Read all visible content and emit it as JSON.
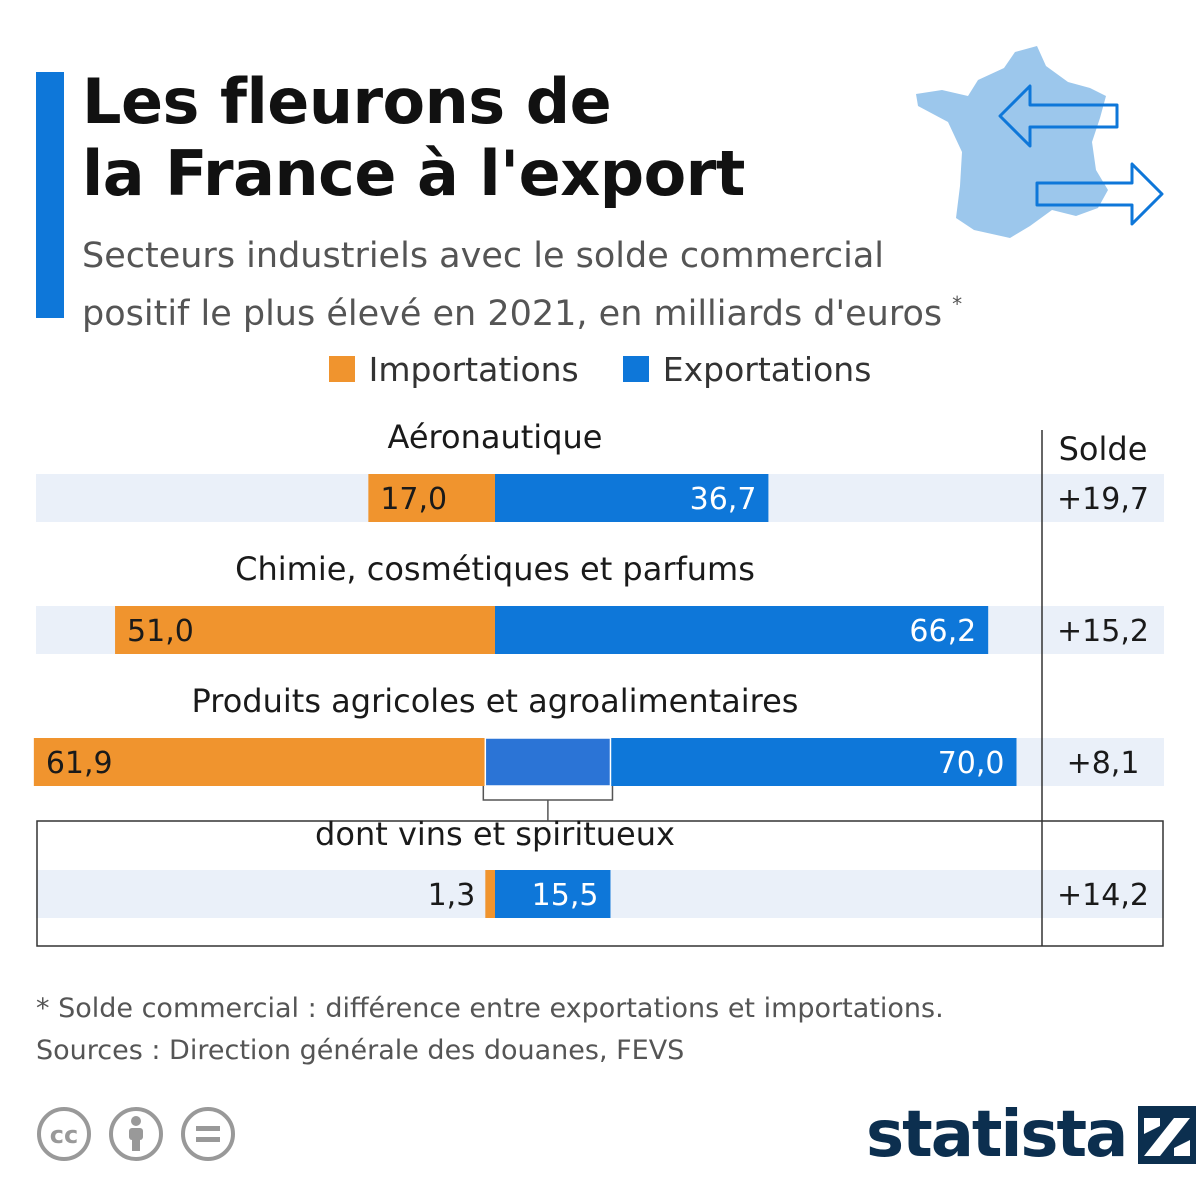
{
  "title": "Les fleurons de\nla France à l'export",
  "subtitle": "Secteurs industriels avec le solde commercial\npositif le plus élevé en 2021, en milliards d'euros",
  "subtitle_marker": "*",
  "colors": {
    "accent": "#0e77d9",
    "imports": "#f0942e",
    "exports": "#0e77d9",
    "track": "#eaf0f9",
    "highlight": "#2b74d6",
    "map": "#9cc7ec"
  },
  "legend": {
    "imports": "Importations",
    "exports": "Exportations"
  },
  "chart_data": {
    "type": "bar",
    "orientation": "diverging-horizontal",
    "unit": "milliards d'euros",
    "balance_header": "Solde",
    "series": [
      {
        "name": "Importations",
        "values": [
          17.0,
          51.0,
          61.9,
          1.3
        ],
        "labels": [
          "17,0",
          "51,0",
          "61,9",
          "1,3"
        ]
      },
      {
        "name": "Exportations",
        "values": [
          36.7,
          66.2,
          70.0,
          15.5
        ],
        "labels": [
          "36,7",
          "66,2",
          "70,0",
          "15,5"
        ]
      }
    ],
    "categories": [
      "Aéronautique",
      "Chimie, cosmétiques et parfums",
      "Produits agricoles et agroalimentaires",
      "dont vins et spiritueux"
    ],
    "balance": [
      19.7,
      15.2,
      8.1,
      14.2
    ],
    "balance_labels": [
      "+19,7",
      "+15,2",
      "+8,1",
      "+14,2"
    ],
    "subcategory_of": {
      "dont vins et spiritueux": "Produits agricoles et agroalimentaires"
    }
  },
  "footnote": "* Solde commercial : différence entre exportations et importations.",
  "sources": "Sources : Direction générale des douanes, FEVS",
  "brand": "statista",
  "license_icons": [
    "creative-commons-icon",
    "attribution-icon",
    "no-derivatives-icon"
  ]
}
